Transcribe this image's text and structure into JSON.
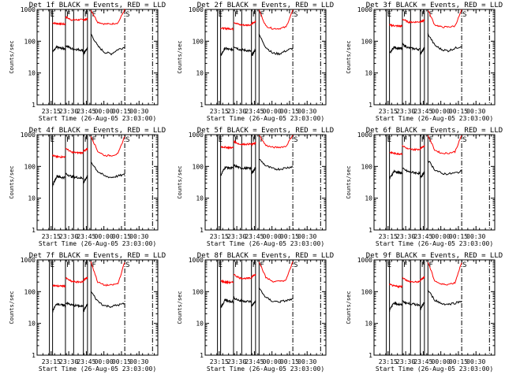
{
  "chart_data": {
    "type": "line",
    "grid": false,
    "y_scale": "log",
    "ylim": [
      1,
      1000
    ],
    "y_tick_labels": [
      "1",
      "10",
      "100",
      "1000"
    ],
    "ylabel": "Counts/sec",
    "xlabel": "Start Time (26-Aug-05 23:03:00)",
    "x_tick_labels": [
      "23:15",
      "23:30",
      "23:45",
      "00:00",
      "00:15",
      "00:30"
    ],
    "x_tick_minutes_from_start": [
      12,
      27,
      42,
      57,
      72,
      87
    ],
    "xlim_minutes_from_start": [
      0,
      103
    ],
    "solid_verticals_minutes": [
      10.5,
      13.2,
      24.2,
      31.2,
      39.5,
      43.0,
      46.0
    ],
    "dashdot_verticals_minutes": [
      74.8,
      98.5
    ],
    "markers": [
      {
        "label": "E",
        "minute": 10.5
      },
      {
        "label": "F",
        "minute": 24.2
      },
      {
        "label": "F",
        "minute": 39.5
      },
      {
        "label": "F",
        "minute": 46.0
      },
      {
        "label": "S",
        "minute": 74.8
      }
    ],
    "series_colors": {
      "lld": "#ff0000",
      "events": "#000000"
    },
    "segments_minutes": [
      [
        13.2,
        24.2
      ],
      [
        24.2,
        39.5
      ],
      [
        39.5,
        43.0
      ],
      [
        46.0,
        74.8
      ]
    ],
    "panels": [
      {
        "title": "Det 1f BLACK = Events, RED = LLD",
        "lld": [
          [
            380,
            360,
            350,
            345
          ],
          [
            580,
            470,
            470,
            480
          ],
          [
            450,
            520
          ],
          [
            950,
            400,
            350,
            350,
            380,
            1000
          ]
        ],
        "events": [
          [
            45,
            65,
            60,
            58
          ],
          [
            75,
            58,
            55,
            52
          ],
          [
            40,
            60
          ],
          [
            170,
            70,
            45,
            40,
            55,
            65
          ]
        ]
      },
      {
        "title": "Det 2f BLACK = Events, RED = LLD",
        "lld": [
          [
            260,
            250,
            250,
            240
          ],
          [
            400,
            330,
            320,
            330
          ],
          [
            350,
            420
          ],
          [
            950,
            300,
            250,
            250,
            280,
            950
          ]
        ],
        "events": [
          [
            35,
            60,
            55,
            55
          ],
          [
            70,
            55,
            52,
            48
          ],
          [
            35,
            55
          ],
          [
            160,
            65,
            42,
            40,
            50,
            60
          ]
        ]
      },
      {
        "title": "Det 3f BLACK = Events, RED = LLD",
        "lld": [
          [
            320,
            310,
            300,
            300
          ],
          [
            500,
            400,
            400,
            410
          ],
          [
            400,
            460
          ],
          [
            950,
            330,
            280,
            280,
            300,
            950
          ]
        ],
        "events": [
          [
            40,
            65,
            60,
            58
          ],
          [
            80,
            62,
            58,
            55
          ],
          [
            40,
            60
          ],
          [
            170,
            75,
            55,
            50,
            60,
            70
          ]
        ]
      },
      {
        "title": "Det 4f BLACK = Events, RED = LLD",
        "lld": [
          [
            220,
            200,
            200,
            200
          ],
          [
            380,
            280,
            270,
            270
          ],
          [
            300,
            360
          ],
          [
            900,
            300,
            220,
            220,
            250,
            900
          ]
        ],
        "events": [
          [
            25,
            50,
            45,
            45
          ],
          [
            60,
            48,
            45,
            42
          ],
          [
            30,
            50
          ],
          [
            140,
            70,
            50,
            45,
            50,
            55
          ]
        ]
      },
      {
        "title": "Det 5f BLACK = Events, RED = LLD",
        "lld": [
          [
            420,
            400,
            390,
            390
          ],
          [
            620,
            500,
            500,
            510
          ],
          [
            480,
            560
          ],
          [
            950,
            460,
            400,
            400,
            430,
            1000
          ]
        ],
        "events": [
          [
            50,
            95,
            90,
            88
          ],
          [
            110,
            90,
            88,
            85
          ],
          [
            60,
            90
          ],
          [
            170,
            105,
            85,
            82,
            90,
            100
          ]
        ]
      },
      {
        "title": "Det 6f BLACK = Events, RED = LLD",
        "lld": [
          [
            280,
            260,
            250,
            250
          ],
          [
            450,
            350,
            340,
            350
          ],
          [
            380,
            440
          ],
          [
            950,
            330,
            260,
            260,
            290,
            950
          ]
        ],
        "events": [
          [
            40,
            70,
            65,
            62
          ],
          [
            85,
            68,
            64,
            60
          ],
          [
            45,
            65
          ],
          [
            160,
            80,
            60,
            58,
            62,
            70
          ]
        ]
      },
      {
        "title": "Det 7f BLACK = Events, RED = LLD",
        "lld": [
          [
            160,
            150,
            150,
            150
          ],
          [
            270,
            210,
            200,
            205
          ],
          [
            230,
            280
          ],
          [
            850,
            200,
            160,
            160,
            180,
            850
          ]
        ],
        "events": [
          [
            25,
            42,
            38,
            36
          ],
          [
            45,
            38,
            36,
            34
          ],
          [
            25,
            40
          ],
          [
            100,
            50,
            36,
            34,
            38,
            42
          ]
        ]
      },
      {
        "title": "Det 8f BLACK = Events, RED = LLD",
        "lld": [
          [
            220,
            200,
            195,
            195
          ],
          [
            350,
            270,
            260,
            265
          ],
          [
            290,
            350
          ],
          [
            900,
            280,
            210,
            210,
            230,
            900
          ]
        ],
        "events": [
          [
            30,
            55,
            50,
            48
          ],
          [
            65,
            52,
            50,
            48
          ],
          [
            35,
            50
          ],
          [
            130,
            65,
            50,
            48,
            52,
            58
          ]
        ]
      },
      {
        "title": "Det 9f BLACK = Events, RED = LLD",
        "lld": [
          [
            170,
            150,
            145,
            145
          ],
          [
            280,
            210,
            200,
            205
          ],
          [
            230,
            290
          ],
          [
            850,
            220,
            170,
            170,
            190,
            850
          ]
        ],
        "events": [
          [
            25,
            45,
            40,
            38
          ],
          [
            50,
            42,
            40,
            38
          ],
          [
            28,
            45
          ],
          [
            110,
            55,
            42,
            40,
            44,
            50
          ]
        ]
      }
    ]
  }
}
